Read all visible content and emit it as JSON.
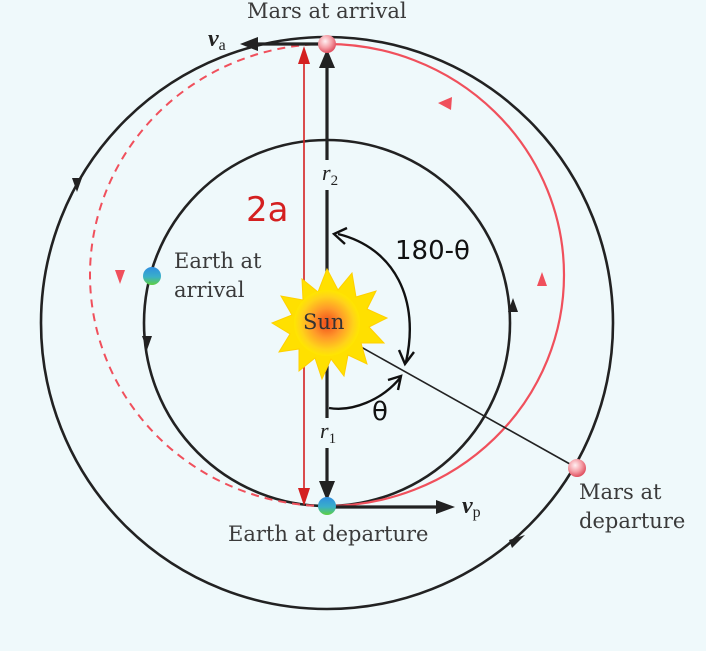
{
  "labels": {
    "mars_arrival": "Mars at arrival",
    "earth_arrival_line1": "Earth at",
    "earth_arrival_line2": "arrival",
    "sun": "Sun",
    "earth_departure": "Earth at departure",
    "mars_departure_line1": "Mars at",
    "mars_departure_line2": "departure",
    "semi_major": "2a",
    "angle_supplement": "180-θ",
    "angle_theta": "θ",
    "r2_symbol": "r",
    "r2_sub": "2",
    "r1_symbol": "r",
    "r1_sub": "1",
    "va_symbol": "v",
    "va_sub": "a",
    "vp_symbol": "v",
    "vp_sub": "p"
  },
  "colors": {
    "background": "#eff9fb",
    "orbit": "#222222",
    "transfer": "#f0505c",
    "annotation_red": "#d42020",
    "sun_core": "#f04a1a",
    "sun_rays": "#ffe000",
    "planet_mars": "#f5a0a8",
    "planet_earth": "#3aa0e0"
  }
}
